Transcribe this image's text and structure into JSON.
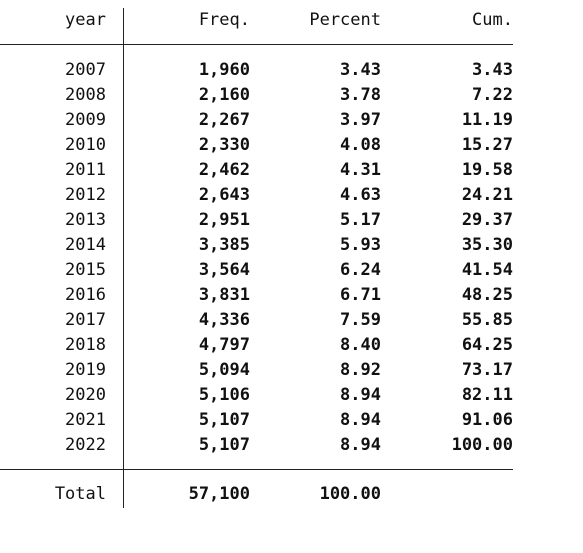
{
  "table": {
    "header": [
      "year",
      "Freq.",
      "Percent",
      "Cum."
    ],
    "rows": [
      [
        "2007",
        "1,960",
        "3.43",
        "3.43"
      ],
      [
        "2008",
        "2,160",
        "3.78",
        "7.22"
      ],
      [
        "2009",
        "2,267",
        "3.97",
        "11.19"
      ],
      [
        "2010",
        "2,330",
        "4.08",
        "15.27"
      ],
      [
        "2011",
        "2,462",
        "4.31",
        "19.58"
      ],
      [
        "2012",
        "2,643",
        "4.63",
        "24.21"
      ],
      [
        "2013",
        "2,951",
        "5.17",
        "29.37"
      ],
      [
        "2014",
        "3,385",
        "5.93",
        "35.30"
      ],
      [
        "2015",
        "3,564",
        "6.24",
        "41.54"
      ],
      [
        "2016",
        "3,831",
        "6.71",
        "48.25"
      ],
      [
        "2017",
        "4,336",
        "7.59",
        "55.85"
      ],
      [
        "2018",
        "4,797",
        "8.40",
        "64.25"
      ],
      [
        "2019",
        "5,094",
        "8.92",
        "73.17"
      ],
      [
        "2020",
        "5,106",
        "8.94",
        "82.11"
      ],
      [
        "2021",
        "5,107",
        "8.94",
        "91.06"
      ],
      [
        "2022",
        "5,107",
        "8.94",
        "100.00"
      ]
    ],
    "total": [
      "Total",
      "57,100",
      "100.00"
    ]
  }
}
